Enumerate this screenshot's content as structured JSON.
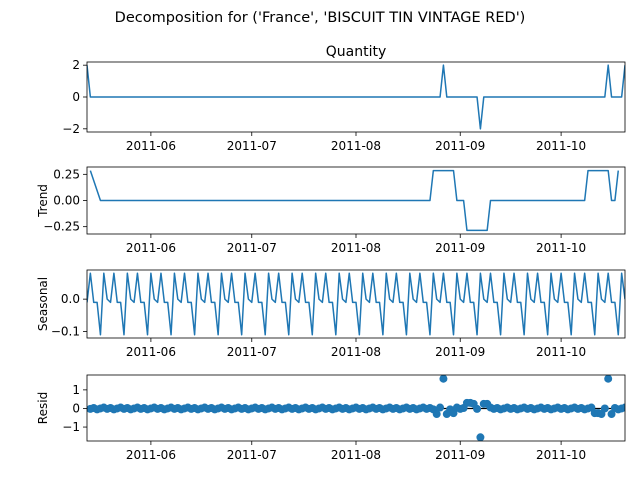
{
  "figure": {
    "suptitle": "Decomposition for ('France', 'BISCUIT TIN VINTAGE RED')"
  },
  "colors": {
    "series": "#1f77b4",
    "axis": "#000000",
    "background": "#ffffff"
  },
  "chart_data": [
    {
      "type": "line",
      "title": "Quantity",
      "ylabel": "",
      "x_start": "2011-05-13",
      "x_end": "2011-10-20",
      "x_ticks": [
        [
          "2011-06-01",
          "2011-06"
        ],
        [
          "2011-07-01",
          "2011-07"
        ],
        [
          "2011-08-01",
          "2011-08"
        ],
        [
          "2011-09-01",
          "2011-09"
        ],
        [
          "2011-10-01",
          "2011-10"
        ]
      ],
      "ylim": [
        -2.2,
        2.2
      ],
      "y_ticks": [
        [
          -2,
          "−2"
        ],
        [
          0,
          "0"
        ],
        [
          2,
          "2"
        ]
      ],
      "x": [
        "2011-05-13",
        "2011-05-14",
        "2011-10-20"
      ],
      "values": [
        2,
        0,
        2
      ],
      "points": [
        [
          "2011-05-13",
          2
        ],
        [
          "2011-05-14",
          0
        ],
        [
          "2011-10-14",
          0
        ],
        [
          "2011-10-15",
          2
        ],
        [
          "2011-10-16",
          0
        ],
        [
          "2011-10-19",
          0
        ],
        [
          "2011-10-20",
          2
        ]
      ],
      "events": [
        {
          "date": "2011-08-27",
          "value": 2
        },
        {
          "date": "2011-09-07",
          "value": -2
        }
      ]
    },
    {
      "type": "line",
      "title": "",
      "ylabel": "Trend",
      "x_start": "2011-05-13",
      "x_end": "2011-10-20",
      "x_ticks": [
        [
          "2011-06-01",
          "2011-06"
        ],
        [
          "2011-07-01",
          "2011-07"
        ],
        [
          "2011-08-01",
          "2011-08"
        ],
        [
          "2011-09-01",
          "2011-09"
        ],
        [
          "2011-10-01",
          "2011-10"
        ]
      ],
      "ylim": [
        -0.32,
        0.32
      ],
      "y_ticks": [
        [
          -0.25,
          "−0.25"
        ],
        [
          0,
          "0.00"
        ],
        [
          0.25,
          "0.25"
        ]
      ],
      "points": [
        [
          "2011-05-14",
          0.2857
        ],
        [
          "2011-05-17",
          0
        ],
        [
          "2011-08-23",
          0
        ],
        [
          "2011-08-24",
          0.2857
        ],
        [
          "2011-08-30",
          0.2857
        ],
        [
          "2011-08-31",
          0
        ],
        [
          "2011-09-02",
          0
        ],
        [
          "2011-09-03",
          -0.2857
        ],
        [
          "2011-09-09",
          -0.2857
        ],
        [
          "2011-09-10",
          0
        ],
        [
          "2011-10-08",
          0
        ],
        [
          "2011-10-09",
          0.2857
        ],
        [
          "2011-10-15",
          0.2857
        ],
        [
          "2011-10-16",
          0
        ],
        [
          "2011-10-17",
          0
        ],
        [
          "2011-10-18",
          0.2857
        ]
      ]
    },
    {
      "type": "line",
      "title": "",
      "ylabel": "Seasonal",
      "x_start": "2011-05-13",
      "x_end": "2011-10-20",
      "x_ticks": [
        [
          "2011-06-01",
          "2011-06"
        ],
        [
          "2011-07-01",
          "2011-07"
        ],
        [
          "2011-08-01",
          "2011-08"
        ],
        [
          "2011-09-01",
          "2011-09"
        ],
        [
          "2011-10-01",
          "2011-10"
        ]
      ],
      "ylim": [
        -0.12,
        0.09
      ],
      "y_ticks": [
        [
          -0.1,
          "−0.1"
        ],
        [
          0,
          "0.0"
        ]
      ],
      "start": "2011-05-13",
      "cycle": [
        -0.01,
        0.08,
        -0.01,
        -0.01,
        -0.11,
        0.08,
        0.0
      ]
    },
    {
      "type": "scatter",
      "title": "",
      "ylabel": "Resid",
      "x_start": "2011-05-13",
      "x_end": "2011-10-20",
      "x_ticks": [
        [
          "2011-06-01",
          "2011-06"
        ],
        [
          "2011-07-01",
          "2011-07"
        ],
        [
          "2011-08-01",
          "2011-08"
        ],
        [
          "2011-09-01",
          "2011-09"
        ],
        [
          "2011-10-01",
          "2011-10"
        ]
      ],
      "ylim": [
        -1.75,
        1.8
      ],
      "y_ticks": [
        [
          -1,
          "−1"
        ],
        [
          0,
          "0"
        ],
        [
          1,
          "1"
        ]
      ],
      "baseline": 0,
      "start": "2011-05-14",
      "outliers": [
        {
          "date": "2011-08-27",
          "value": 1.6
        },
        {
          "date": "2011-09-07",
          "value": -1.55
        },
        {
          "date": "2011-10-15",
          "value": 1.6
        },
        {
          "date": "2011-09-03",
          "value": 0.3
        },
        {
          "date": "2011-09-04",
          "value": 0.3
        },
        {
          "date": "2011-09-05",
          "value": 0.25
        },
        {
          "date": "2011-09-08",
          "value": 0.25
        },
        {
          "date": "2011-09-09",
          "value": 0.25
        },
        {
          "date": "2011-08-25",
          "value": -0.3
        },
        {
          "date": "2011-08-28",
          "value": -0.3
        },
        {
          "date": "2011-08-30",
          "value": -0.25
        },
        {
          "date": "2011-10-11",
          "value": -0.25
        },
        {
          "date": "2011-10-12",
          "value": -0.25
        },
        {
          "date": "2011-10-13",
          "value": -0.3
        },
        {
          "date": "2011-10-16",
          "value": -0.3
        }
      ]
    }
  ]
}
